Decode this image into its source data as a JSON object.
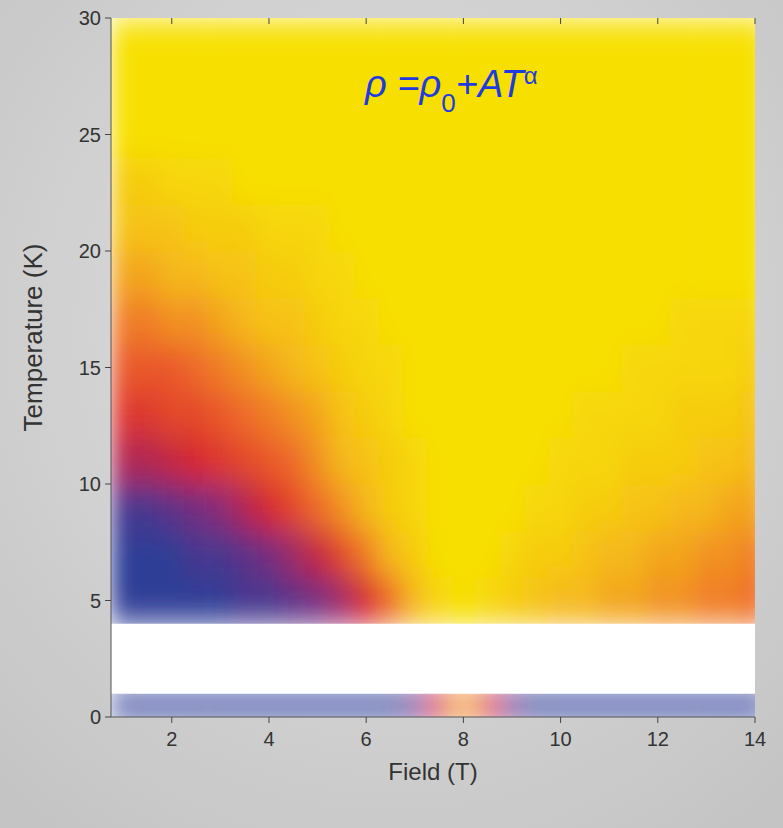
{
  "chart_data": {
    "type": "heatmap",
    "x_label": "Field (T)",
    "y_label": "Temperature (K)",
    "annotation": [
      "ρ =ρ",
      "0",
      "+AT",
      "α"
    ],
    "xlim": [
      0.75,
      14
    ],
    "ylim": [
      0,
      30
    ],
    "xticks": [
      2,
      4,
      6,
      8,
      10,
      12,
      14
    ],
    "yticks": [
      0,
      5,
      10,
      15,
      20,
      25,
      30
    ],
    "zlim": [
      1,
      2
    ],
    "field_bins": [
      0.75,
      1.25,
      1.75,
      2.25,
      2.75,
      3.25,
      3.75,
      4.25,
      4.75,
      5.25,
      5.75,
      6.25,
      6.75,
      7.25,
      7.75,
      8.25,
      8.75,
      9.25,
      9.75,
      10.25,
      10.75,
      11.25,
      11.75,
      12.25,
      12.75,
      13.25,
      13.75,
      14.25
    ],
    "temperature_bins": [
      [
        0,
        1
      ],
      [
        4,
        6
      ],
      [
        6,
        8
      ],
      [
        8,
        10
      ],
      [
        10,
        12
      ],
      [
        12,
        14
      ],
      [
        14,
        16
      ],
      [
        16,
        18
      ],
      [
        18,
        20
      ],
      [
        20,
        22
      ],
      [
        22,
        24
      ],
      [
        24,
        26
      ],
      [
        26,
        28
      ],
      [
        28,
        30
      ]
    ],
    "cells": [
      [
        2,
        2,
        2,
        2,
        2,
        2,
        2,
        2,
        2,
        2,
        2,
        2,
        1.9,
        1.6,
        1.3,
        1.6,
        1.9,
        2,
        2,
        2,
        2,
        2,
        2,
        2,
        2,
        2,
        2
      ],
      [
        2,
        2,
        2,
        2,
        2,
        1.95,
        1.95,
        1.9,
        1.85,
        1.75,
        1.6,
        1.4,
        1.2,
        1.05,
        1,
        1.05,
        1.1,
        1.15,
        1.2,
        1.2,
        1.25,
        1.25,
        1.3,
        1.3,
        1.35,
        1.35,
        1.4
      ],
      [
        2,
        2,
        2,
        1.95,
        1.95,
        1.9,
        1.85,
        1.75,
        1.65,
        1.5,
        1.35,
        1.2,
        1.1,
        1,
        1,
        1,
        1.05,
        1.1,
        1.1,
        1.15,
        1.2,
        1.2,
        1.25,
        1.25,
        1.3,
        1.3,
        1.35
      ],
      [
        1.95,
        1.95,
        1.9,
        1.85,
        1.8,
        1.7,
        1.6,
        1.5,
        1.4,
        1.3,
        1.2,
        1.1,
        1.05,
        1,
        1,
        1,
        1,
        1.05,
        1.05,
        1.1,
        1.1,
        1.15,
        1.15,
        1.2,
        1.2,
        1.25,
        1.25
      ],
      [
        1.7,
        1.7,
        1.65,
        1.6,
        1.55,
        1.5,
        1.45,
        1.4,
        1.3,
        1.2,
        1.15,
        1.1,
        1.05,
        1,
        1,
        1,
        1,
        1,
        1.05,
        1.05,
        1.05,
        1.1,
        1.1,
        1.1,
        1.15,
        1.15,
        1.2
      ],
      [
        1.55,
        1.55,
        1.5,
        1.5,
        1.45,
        1.4,
        1.35,
        1.3,
        1.25,
        1.15,
        1.1,
        1.05,
        1,
        1,
        1,
        1,
        1,
        1,
        1,
        1.05,
        1.05,
        1.05,
        1.05,
        1.1,
        1.1,
        1.1,
        1.15
      ],
      [
        1.45,
        1.45,
        1.45,
        1.4,
        1.35,
        1.3,
        1.25,
        1.2,
        1.15,
        1.1,
        1.05,
        1.05,
        1,
        1,
        1,
        1,
        1,
        1,
        1,
        1,
        1,
        1.05,
        1.05,
        1.05,
        1.05,
        1.05,
        1.1
      ],
      [
        1.35,
        1.35,
        1.3,
        1.3,
        1.25,
        1.2,
        1.15,
        1.15,
        1.1,
        1.05,
        1.05,
        1,
        1,
        1,
        1,
        1,
        1,
        1,
        1,
        1,
        1,
        1,
        1,
        1.05,
        1.05,
        1.05,
        1.05
      ],
      [
        1.25,
        1.25,
        1.2,
        1.2,
        1.15,
        1.15,
        1.1,
        1.1,
        1.05,
        1.05,
        1,
        1,
        1,
        1,
        1,
        1,
        1,
        1,
        1,
        1,
        1,
        1,
        1,
        1,
        1,
        1,
        1
      ],
      [
        1.15,
        1.15,
        1.15,
        1.1,
        1.1,
        1.1,
        1.05,
        1.05,
        1.05,
        1,
        1,
        1,
        1,
        1,
        1,
        1,
        1,
        1,
        1,
        1,
        1,
        1,
        1,
        1,
        1,
        1,
        1
      ],
      [
        1.1,
        1.1,
        1.05,
        1.05,
        1.05,
        1,
        1,
        1,
        1,
        1,
        1,
        1,
        1,
        1,
        1,
        1,
        1,
        1,
        1,
        1,
        1,
        1,
        1,
        1,
        1,
        1,
        1
      ],
      [
        1,
        1,
        1,
        1,
        1,
        1,
        1,
        1,
        1,
        1,
        1,
        1,
        1,
        1,
        1,
        1,
        1,
        1,
        1,
        1,
        1,
        1,
        1,
        1,
        1,
        1,
        1
      ],
      [
        1,
        1,
        1,
        1,
        1,
        1,
        1,
        1,
        1,
        1,
        1,
        1,
        1,
        1,
        1,
        1,
        1,
        1,
        1,
        1,
        1,
        1,
        1,
        1,
        1,
        1,
        1
      ],
      [
        1,
        1,
        1,
        1,
        1,
        1,
        1,
        1,
        1,
        1,
        1,
        1,
        1,
        1,
        1,
        1,
        1,
        1,
        1,
        1,
        1,
        1,
        1,
        1,
        1,
        1,
        1
      ]
    ]
  }
}
